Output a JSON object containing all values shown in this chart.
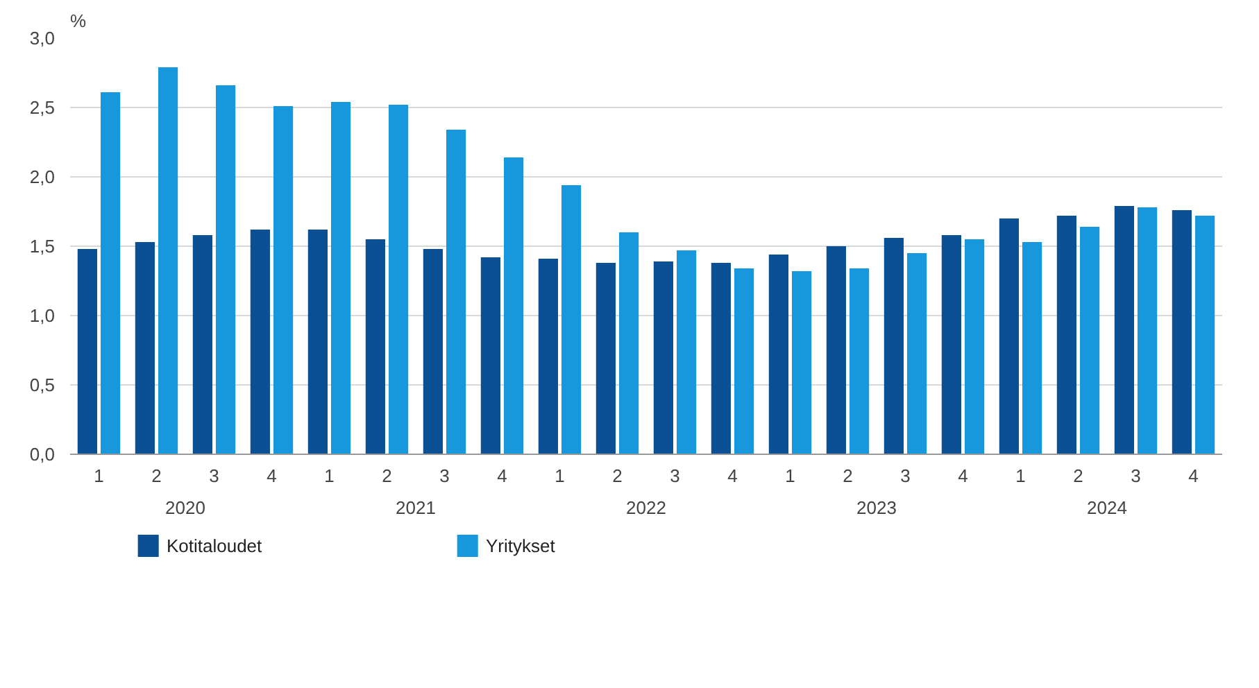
{
  "chart_data": {
    "type": "bar",
    "ylabel": "%",
    "categories": [
      "1",
      "2",
      "3",
      "4",
      "1",
      "2",
      "3",
      "4",
      "1",
      "2",
      "3",
      "4",
      "1",
      "2",
      "3",
      "4",
      "1",
      "2",
      "3",
      "4"
    ],
    "annotations": [
      "2020",
      "2021",
      "2022",
      "2023",
      "2024"
    ],
    "series": [
      {
        "name": "Kotitaloudet",
        "color": "#0b4f94",
        "values": [
          1.48,
          1.53,
          1.58,
          1.62,
          1.62,
          1.55,
          1.48,
          1.42,
          1.41,
          1.38,
          1.39,
          1.38,
          1.44,
          1.5,
          1.56,
          1.58,
          1.7,
          1.72,
          1.79,
          1.76
        ]
      },
      {
        "name": "Yritykset",
        "color": "#1798dc",
        "values": [
          2.61,
          2.79,
          2.66,
          2.51,
          2.54,
          2.52,
          2.34,
          2.14,
          1.94,
          1.6,
          1.47,
          1.34,
          1.32,
          1.34,
          1.45,
          1.55,
          1.53,
          1.64,
          1.78,
          1.72
        ]
      }
    ],
    "ylim": [
      0,
      3.0
    ],
    "yticks": [
      {
        "value": 0,
        "label": "0,0"
      },
      {
        "value": 0.5,
        "label": "0,5"
      },
      {
        "value": 1.0,
        "label": "1,0"
      },
      {
        "value": 1.5,
        "label": "1,5"
      },
      {
        "value": 2.0,
        "label": "2,0"
      },
      {
        "value": 2.5,
        "label": "2,5"
      },
      {
        "value": 3.0,
        "label": "3,0"
      }
    ],
    "grid": "y",
    "legend": "bottom"
  }
}
